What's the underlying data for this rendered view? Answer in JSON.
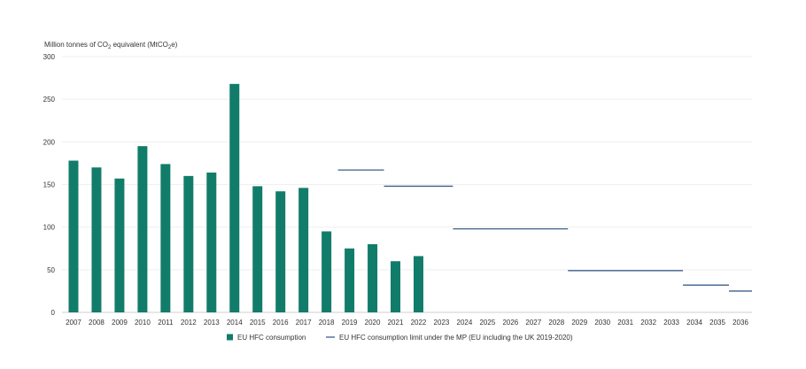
{
  "chart_data": {
    "type": "bar",
    "ylabel_prefix": "Million tonnes of CO",
    "ylabel_sub": "2",
    "ylabel_mid": " equivalent (MtCO",
    "ylabel_sub2": "2",
    "ylabel_suffix": "e)",
    "ylim": [
      0,
      300
    ],
    "yticks": [
      "0",
      "50",
      "100",
      "150",
      "200",
      "250",
      "300"
    ],
    "grid": true,
    "legend_position": "bottom-center",
    "categories": [
      "2007",
      "2008",
      "2009",
      "2010",
      "2011",
      "2012",
      "2013",
      "2014",
      "2015",
      "2016",
      "2017",
      "2018",
      "2019",
      "2020",
      "2021",
      "2022",
      "2023",
      "2024",
      "2025",
      "2026",
      "2027",
      "2028",
      "2029",
      "2030",
      "2031",
      "2032",
      "2033",
      "2034",
      "2035",
      "2036"
    ],
    "series": [
      {
        "name": "EU HFC consumption",
        "type": "bar",
        "color": "#127c6a",
        "values": [
          178,
          170,
          157,
          195,
          174,
          160,
          164,
          268,
          148,
          142,
          146,
          95,
          75,
          80,
          60,
          66,
          null,
          null,
          null,
          null,
          null,
          null,
          null,
          null,
          null,
          null,
          null,
          null,
          null,
          null
        ]
      },
      {
        "name": "EU HFC consumption limit under the MP (EU including the UK 2019-2020)",
        "type": "step",
        "color": "#3d5f8c",
        "segments": [
          {
            "from": "2019",
            "to": "2020",
            "value": 167
          },
          {
            "from": "2021",
            "to": "2023",
            "value": 148
          },
          {
            "from": "2024",
            "to": "2028",
            "value": 98
          },
          {
            "from": "2029",
            "to": "2033",
            "value": 49
          },
          {
            "from": "2034",
            "to": "2035",
            "value": 32
          },
          {
            "from": "2036",
            "to": "2036",
            "value": 25
          }
        ]
      }
    ]
  }
}
